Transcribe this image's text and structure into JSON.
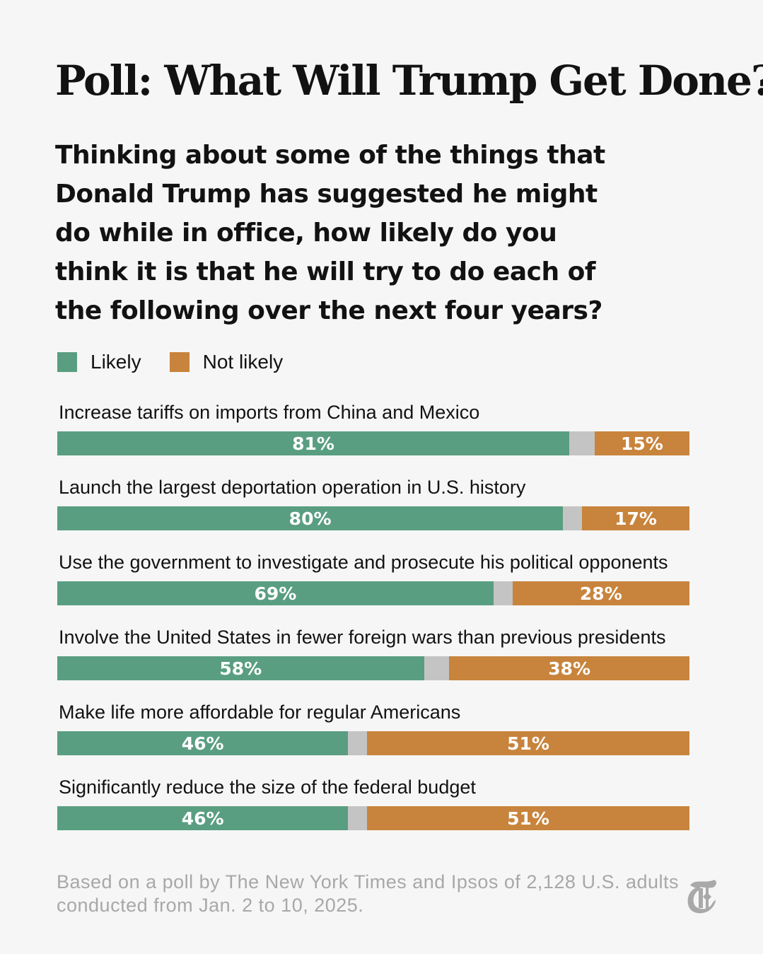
{
  "title": "Poll: What Will Trump Get Done?",
  "question": "Thinking about some of the things that Donald Trump has suggested he might do while in office, how likely do you think it is that he will try to do each of the following over the next four years?",
  "footer": "Based on a poll by The New York Times and Ipsos of 2,128 U.S. adults conducted from Jan. 2 to 10, 2025.",
  "logo": "T",
  "colors": {
    "likely": "#5a9e82",
    "other": "#c4c4c4",
    "not_likely": "#c8843c",
    "background": "#f6f6f6"
  },
  "chart_data": {
    "type": "bar",
    "stacked": true,
    "orientation": "horizontal",
    "legend": {
      "placement": "top-left",
      "entries": [
        "Likely",
        "Not likely"
      ]
    },
    "categories": [
      "Increase tariffs on imports from China and Mexico",
      "Launch the largest deportation operation in U.S. history",
      "Use the government to investigate and prosecute his political opponents",
      "Involve the United States in fewer foreign wars than previous presidents",
      "Make life more affordable for regular Americans",
      "Significantly reduce the size of the federal budget"
    ],
    "series": [
      {
        "name": "Likely",
        "values": [
          81,
          80,
          69,
          58,
          46,
          46
        ]
      },
      {
        "name": "Not likely",
        "values": [
          15,
          17,
          28,
          38,
          51,
          51
        ]
      }
    ],
    "labels": {
      "likely": [
        "81%",
        "80%",
        "69%",
        "58%",
        "46%",
        "46%"
      ],
      "not_likely": [
        "15%",
        "17%",
        "28%",
        "38%",
        "51%",
        "51%"
      ]
    },
    "xlim": [
      0,
      100
    ]
  }
}
